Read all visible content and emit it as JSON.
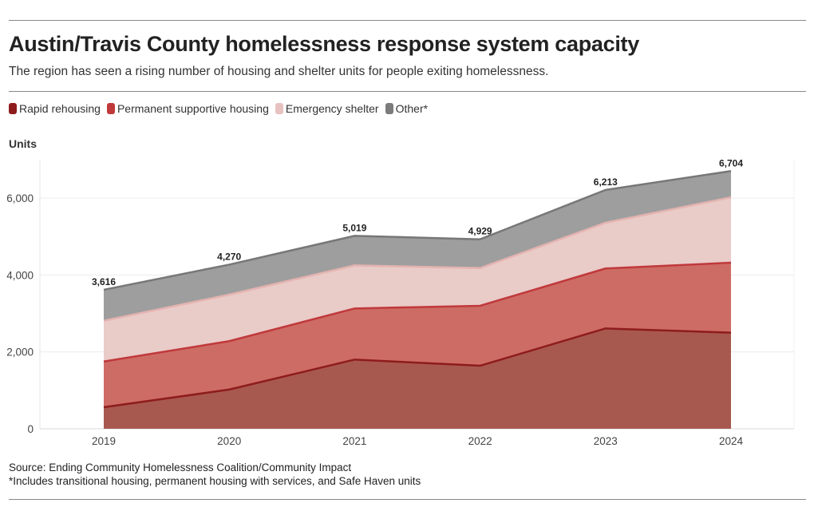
{
  "header": {
    "title": "Austin/Travis County homelessness response system capacity",
    "subtitle": "The region has seen a rising number of housing and shelter units for people exiting homelessness."
  },
  "legend": [
    {
      "label": "Rapid rehousing",
      "color": "#8e1c1c"
    },
    {
      "label": "Permanent supportive housing",
      "color": "#c0393b"
    },
    {
      "label": "Emergency shelter",
      "color": "#e8c2c0"
    },
    {
      "label": "Other*",
      "color": "#7b7b7b"
    }
  ],
  "chart_data": {
    "type": "area",
    "stacked": true,
    "ylabel": "Units",
    "ylim": [
      0,
      7000
    ],
    "yticks": [
      0,
      2000,
      4000,
      6000
    ],
    "ytick_labels": [
      "0",
      "2,000",
      "4,000",
      "6,000"
    ],
    "categories": [
      "2019",
      "2020",
      "2021",
      "2022",
      "2023",
      "2024"
    ],
    "series": [
      {
        "name": "Rapid rehousing",
        "values": [
          560,
          1020,
          1800,
          1640,
          2610,
          2500
        ],
        "fill": "#a8594f",
        "line": "#8e1c1c"
      },
      {
        "name": "Permanent supportive housing",
        "values": [
          1190,
          1260,
          1330,
          1560,
          1560,
          1820
        ],
        "fill": "#cd6c65",
        "line": "#c0393b"
      },
      {
        "name": "Emergency shelter",
        "values": [
          1060,
          1210,
          1120,
          980,
          1190,
          1700
        ],
        "fill": "#e9cbc8",
        "line": "#e3b3b0"
      },
      {
        "name": "Other*",
        "values": [
          806,
          780,
          769,
          749,
          853,
          684
        ],
        "fill": "#9e9e9e",
        "line": "#777777"
      }
    ],
    "totals": [
      3616,
      4270,
      5019,
      4929,
      6213,
      6704
    ],
    "total_labels": [
      "3,616",
      "4,270",
      "5,019",
      "4,929",
      "6,213",
      "6,704"
    ],
    "grid": true
  },
  "footer": {
    "source": "Source: Ending Community Homelessness Coalition/Community Impact",
    "note": "*Includes transitional housing, permanent housing with services, and Safe Haven units"
  }
}
